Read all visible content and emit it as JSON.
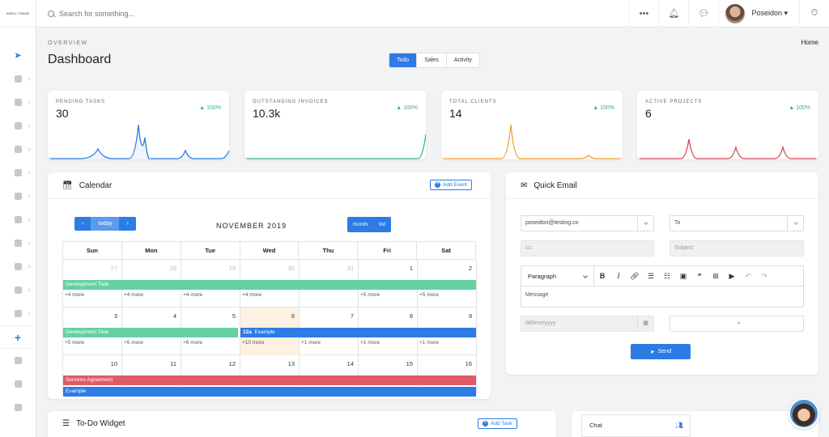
{
  "logo_text": "SWELL THEME",
  "search": {
    "placeholder": "Search for something..."
  },
  "user": {
    "name": "Poseidon ▾"
  },
  "header": {
    "overline": "OVERVIEW",
    "title": "Dashboard",
    "breadcrumb": "Home"
  },
  "tabs": [
    "Todo",
    "Sales",
    "Activity"
  ],
  "stats": [
    {
      "label": "PENDING TASKS",
      "value": "30",
      "trend": "▲ 100%",
      "color": "#2d7be5"
    },
    {
      "label": "OUTSTANDING INVOICES",
      "value": "10.3k",
      "trend": "▲ 100%",
      "color": "#38b277"
    },
    {
      "label": "TOTAL CLIENTS",
      "value": "14",
      "trend": "▲ 100%",
      "color": "#f0a030"
    },
    {
      "label": "ACTIVE PROJECTS",
      "value": "6",
      "trend": "▲ 100%",
      "color": "#d9485a"
    }
  ],
  "calendar": {
    "title": "Calendar",
    "add_event": "Add Event",
    "prev": "‹",
    "today": "today",
    "next": "›",
    "month": "NOVEMBER 2019",
    "view_month": "month",
    "view_list": "list",
    "days": [
      "Sun",
      "Mon",
      "Tue",
      "Wed",
      "Thu",
      "Fri",
      "Sat"
    ],
    "weeks": [
      {
        "nums": [
          "27",
          "28",
          "29",
          "30",
          "31",
          "1",
          "2"
        ],
        "more": [
          "+4 more",
          "+4 more",
          "+4 more",
          "+4 more",
          "",
          "+5 more",
          "+5 more"
        ]
      },
      {
        "nums": [
          "3",
          "4",
          "5",
          "6",
          "7",
          "8",
          "9"
        ],
        "more": [
          "+5 more",
          "+5 more",
          "+6 more",
          "+10 more",
          "+1 more",
          "+1 more",
          "+1 more"
        ]
      },
      {
        "nums": [
          "10",
          "11",
          "12",
          "13",
          "14",
          "15",
          "16"
        ],
        "more": [
          "",
          "",
          "",
          "",
          "",
          "",
          ""
        ]
      }
    ],
    "events": {
      "dev1": "Development Task",
      "dev2": "Development Task",
      "example_time": "12a",
      "example1": "Example",
      "services": "Services Agreement",
      "example2": "Example"
    }
  },
  "quick_email": {
    "title": "Quick Email",
    "from": "poseidon@testing.co",
    "to_placeholder": "To",
    "cc_placeholder": "cc:",
    "subject_placeholder": "Subject",
    "paragraph": "Paragraph",
    "message_placeholder": "Message",
    "date_placeholder": "dd/mm/yyyy",
    "send": "Send"
  },
  "todo": {
    "title": "To-Do Widget",
    "add_task": "Add Task"
  },
  "chat": {
    "label": "Chat"
  }
}
